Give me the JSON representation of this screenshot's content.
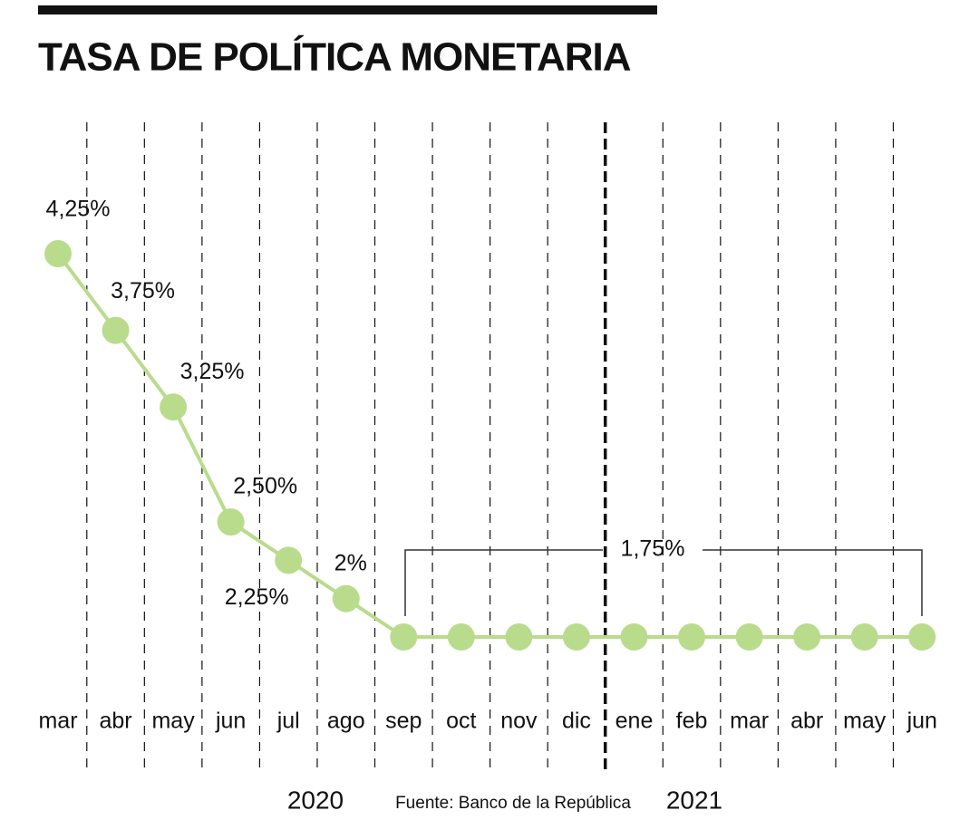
{
  "chart_data": {
    "type": "line",
    "title": "TASA DE POLÍTICA MONETARIA",
    "categories": [
      "mar",
      "abr",
      "may",
      "jun",
      "jul",
      "ago",
      "sep",
      "oct",
      "nov",
      "dic",
      "ene",
      "feb",
      "mar",
      "abr",
      "may",
      "jun"
    ],
    "series": [
      {
        "color": "#b9dc8c",
        "values": [
          4.25,
          3.75,
          3.25,
          2.5,
          2.25,
          2,
          1.75,
          1.75,
          1.75,
          1.75,
          1.75,
          1.75,
          1.75,
          1.75,
          1.75,
          1.75
        ],
        "value_labels": [
          "4,25%",
          "3,75%",
          "3,25%",
          "2,50%",
          "2,25%",
          "2%",
          null,
          null,
          null,
          null,
          null,
          null,
          null,
          null,
          null,
          null
        ]
      }
    ],
    "annotation": "1,75%",
    "years": [
      "2020",
      "2021"
    ],
    "source": "Fuente: Banco de la República"
  }
}
